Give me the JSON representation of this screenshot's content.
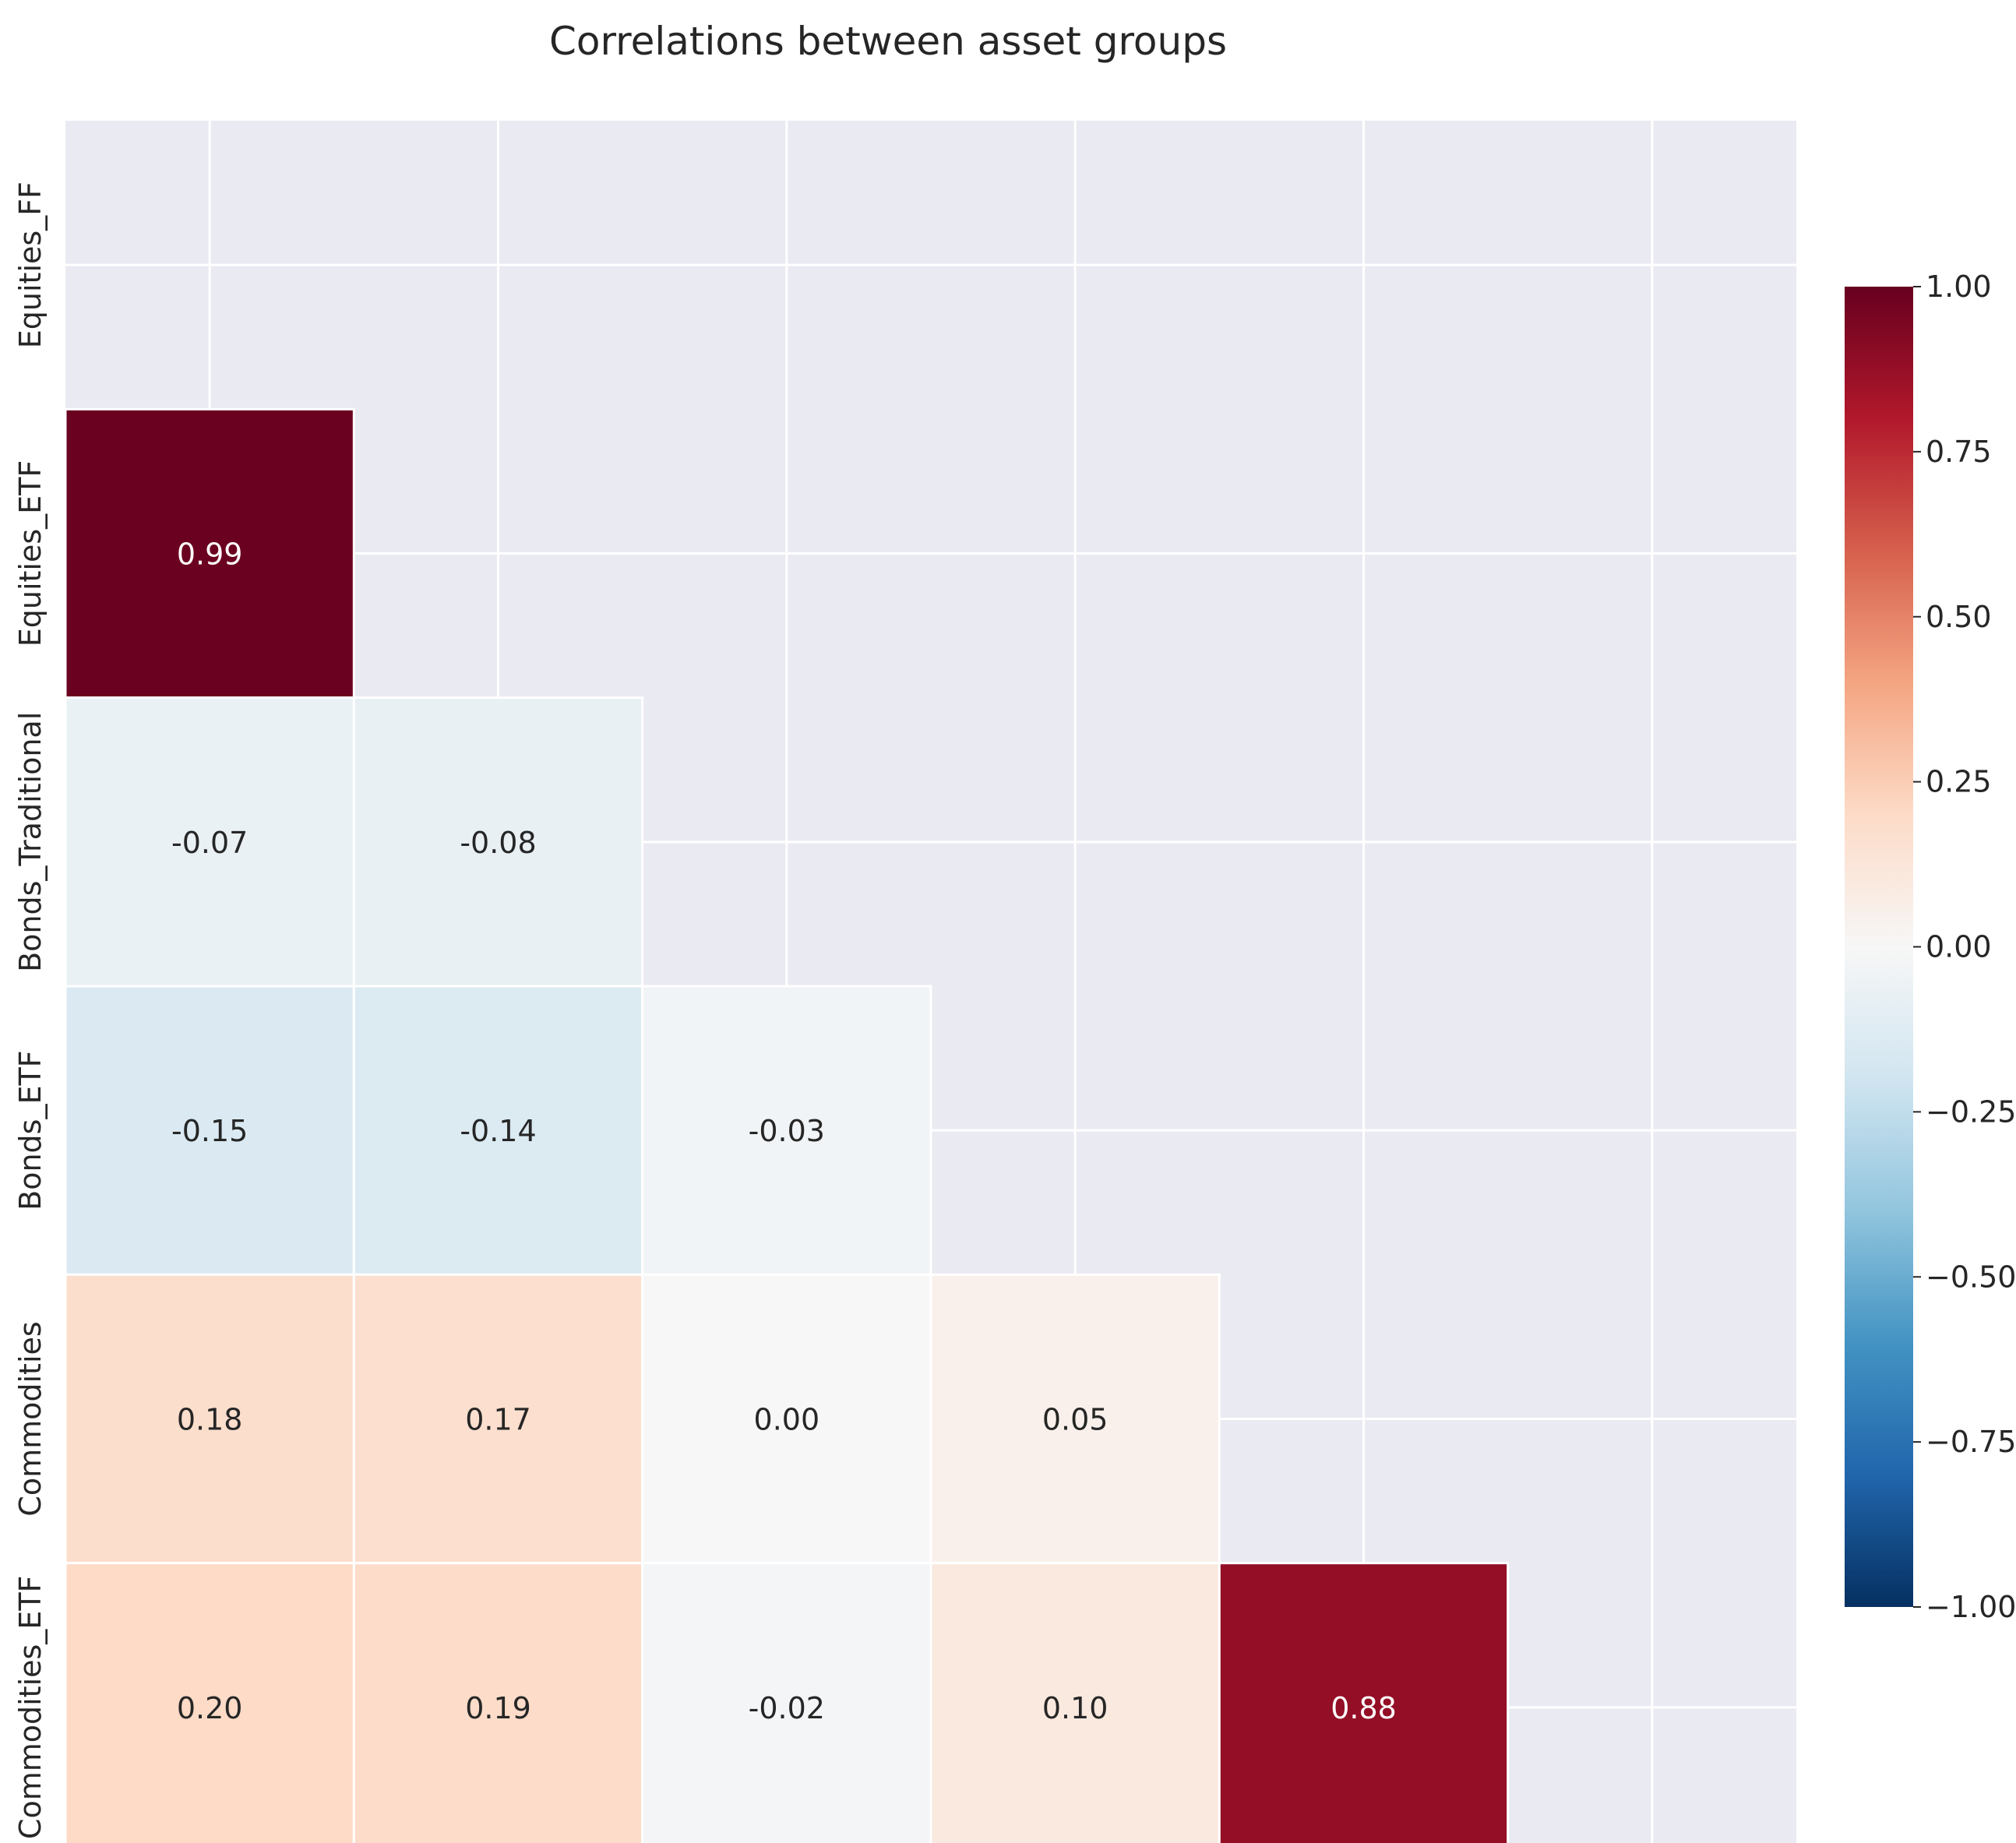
{
  "chart_data": {
    "type": "heatmap",
    "title": "Correlations between asset groups",
    "xlabel": "",
    "ylabel": "",
    "categories": [
      "Equities_FF",
      "Equities_ETF",
      "Bonds_Traditional",
      "Bonds_ETF",
      "Commodities",
      "Commodities_ETF"
    ],
    "mask": "upper-triangle-including-diagonal",
    "values": [
      [
        null,
        null,
        null,
        null,
        null,
        null
      ],
      [
        0.99,
        null,
        null,
        null,
        null,
        null
      ],
      [
        -0.07,
        -0.08,
        null,
        null,
        null,
        null
      ],
      [
        -0.15,
        -0.14,
        -0.03,
        null,
        null,
        null
      ],
      [
        0.18,
        0.17,
        0.0,
        0.05,
        null,
        null
      ],
      [
        0.2,
        0.19,
        -0.02,
        0.1,
        0.88,
        null
      ]
    ],
    "value_format": "0.00",
    "colormap": "RdBu_r",
    "vmin": -1.0,
    "vmax": 1.0,
    "colorbar_ticks": [
      "1.00",
      "0.75",
      "0.50",
      "0.25",
      "0.00",
      "−0.25",
      "−0.50",
      "−0.75",
      "−1.00"
    ],
    "colorbar_tick_values": [
      1.0,
      0.75,
      0.5,
      0.25,
      0.0,
      -0.25,
      -0.5,
      -0.75,
      -1.0
    ],
    "grid": true,
    "style": {
      "axes_background": "#EAEAF2",
      "grid_color": "#FFFFFF",
      "text_dark": "#262626",
      "text_light": "#FFFFFF"
    }
  }
}
